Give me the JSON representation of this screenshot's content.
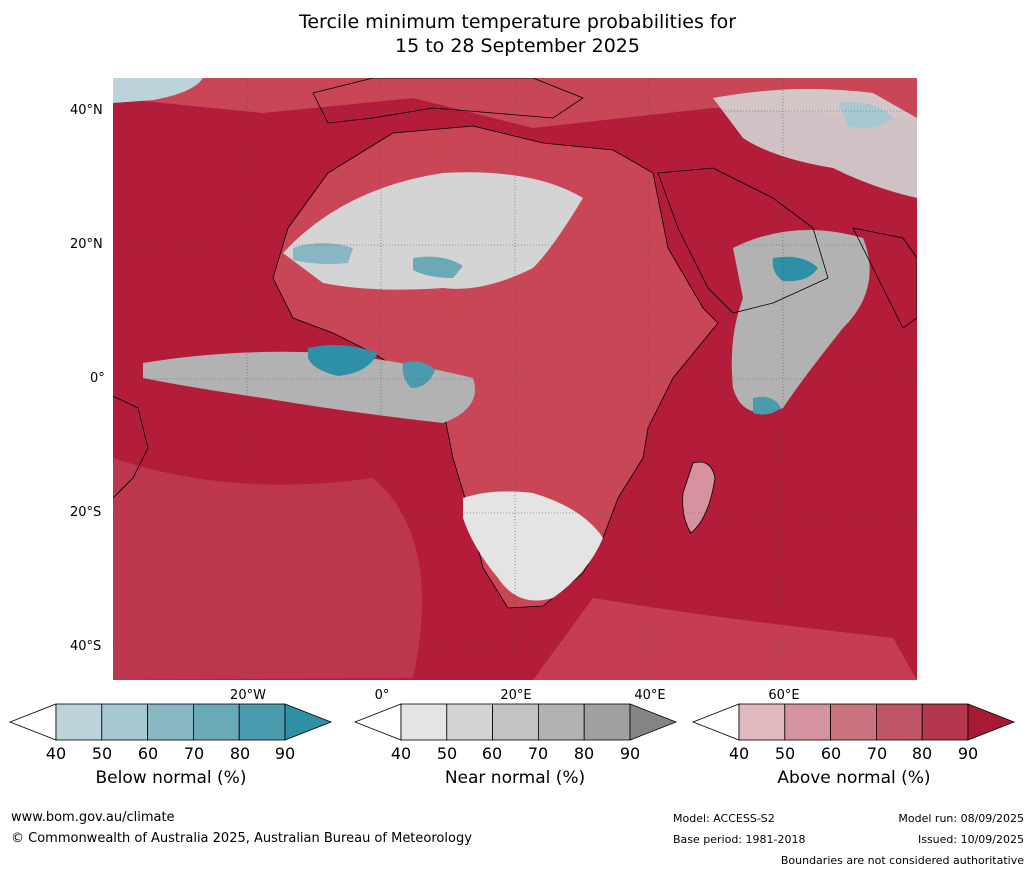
{
  "title": {
    "line1": "Tercile minimum temperature probabilities for",
    "line2": "15 to 28 September 2025"
  },
  "map": {
    "lat_labels": [
      "40°N",
      "20°N",
      "0°",
      "20°S",
      "40°S"
    ],
    "lon_labels": [
      "20°W",
      "0°",
      "20°E",
      "40°E",
      "60°E"
    ],
    "colors": {
      "ocean_above": "#b41d3a",
      "land_above": "#c94657",
      "near_normal": "#d4d4d4",
      "below_normal": "#3d97aa"
    }
  },
  "legends": [
    {
      "id": "below",
      "title": "Below normal (%)",
      "ticks": [
        "40",
        "50",
        "60",
        "70",
        "80",
        "90"
      ],
      "colors": [
        "#ffffff",
        "#bcd3db",
        "#a7c8d0",
        "#88b6c2",
        "#6aa9b6",
        "#4a9bae",
        "#2e90a6"
      ]
    },
    {
      "id": "near",
      "title": "Near normal (%)",
      "ticks": [
        "40",
        "50",
        "60",
        "70",
        "80",
        "90"
      ],
      "colors": [
        "#ffffff",
        "#e4e4e4",
        "#d4d4d4",
        "#c3c3c3",
        "#b2b2b2",
        "#a0a0a0",
        "#858585"
      ]
    },
    {
      "id": "above",
      "title": "Above normal (%)",
      "ticks": [
        "40",
        "50",
        "60",
        "70",
        "80",
        "90"
      ],
      "colors": [
        "#ffffff",
        "#e2b8bf",
        "#d4939e",
        "#c9737e",
        "#bf5566",
        "#b4374d",
        "#a91a34"
      ]
    }
  ],
  "footer": {
    "website": "www.bom.gov.au/climate",
    "copyright": "© Commonwealth of Australia 2025, Australian Bureau of Meteorology",
    "model": "Model: ACCESS-S2",
    "base_period": "Base period: 1981-2018",
    "model_run": "Model run: 08/09/2025",
    "issued": "Issued: 10/09/2025",
    "disclaimer": "Boundaries are not considered authoritative"
  }
}
